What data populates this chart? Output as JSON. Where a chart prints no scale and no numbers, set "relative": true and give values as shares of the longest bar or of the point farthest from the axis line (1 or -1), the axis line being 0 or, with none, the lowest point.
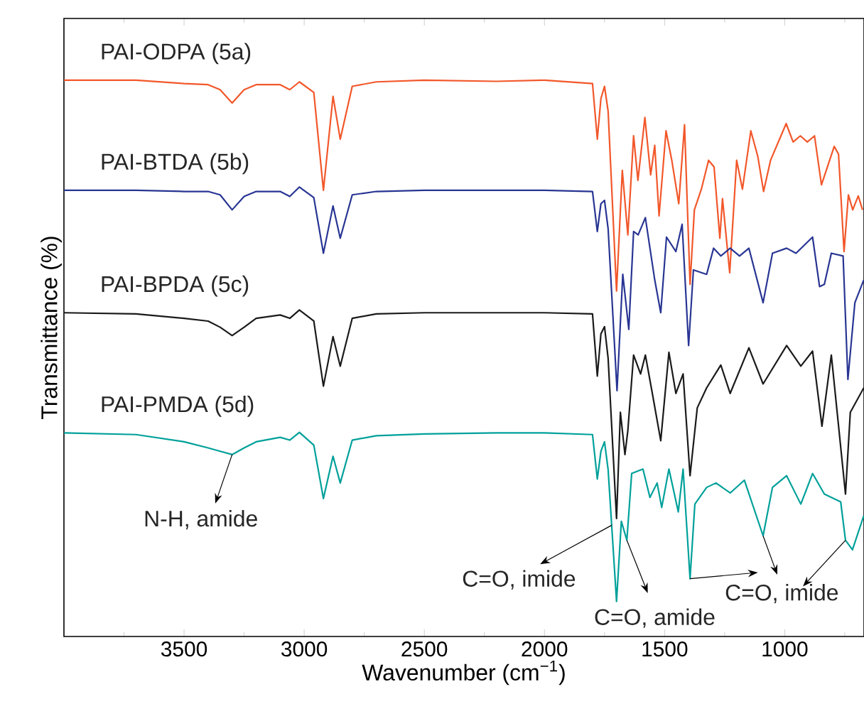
{
  "chart_data": {
    "type": "line",
    "relative": true,
    "xlabel": "Wavenumber (cm$^{−1}$)",
    "ylabel": "Transmittance (%)",
    "xlim": [
      4000,
      670
    ],
    "xticks": [
      3500,
      3000,
      2500,
      2000,
      1500,
      1000
    ],
    "series": [
      {
        "name": "PAI-ODPA (5a)",
        "color": "#f2572a",
        "x": [
          4000,
          3700,
          3500,
          3400,
          3350,
          3300,
          3250,
          3200,
          3100,
          3060,
          3020,
          2960,
          2920,
          2880,
          2850,
          2800,
          2700,
          2500,
          2200,
          2000,
          1800,
          1780,
          1765,
          1750,
          1735,
          1700,
          1676,
          1653,
          1629,
          1611,
          1582,
          1558,
          1541,
          1523,
          1494,
          1470,
          1441,
          1417,
          1394,
          1376,
          1347,
          1317,
          1294,
          1270,
          1259,
          1229,
          1200,
          1176,
          1141,
          1112,
          1088,
          1059,
          994,
          965,
          935,
          906,
          876,
          847,
          794,
          776,
          753,
          735,
          717,
          694,
          676
        ],
        "values": [
          1,
          1,
          0.994,
          0.992,
          0.983,
          0.959,
          0.983,
          0.992,
          0.992,
          0.983,
          0.997,
          0.978,
          0.802,
          0.971,
          0.894,
          0.989,
          0.997,
          1,
          0.998,
          1,
          0.994,
          0.894,
          0.967,
          0.989,
          0.944,
          0.621,
          0.838,
          0.722,
          0.9,
          0.82,
          0.933,
          0.83,
          0.883,
          0.756,
          0.909,
          0.856,
          0.778,
          0.92,
          0.633,
          0.767,
          0.804,
          0.856,
          0.844,
          0.716,
          0.787,
          0.654,
          0.856,
          0.804,
          0.909,
          0.863,
          0.8,
          0.856,
          0.922,
          0.889,
          0.9,
          0.889,
          0.9,
          0.812,
          0.881,
          0.867,
          0.692,
          0.794,
          0.767,
          0.792,
          0.767
        ]
      },
      {
        "name": "PAI-BTDA (5b)",
        "color": "#283593",
        "x": [
          4000,
          3700,
          3500,
          3400,
          3350,
          3300,
          3250,
          3200,
          3100,
          3060,
          3020,
          2960,
          2920,
          2880,
          2850,
          2800,
          2700,
          2500,
          2200,
          2000,
          1800,
          1780,
          1765,
          1750,
          1735,
          1698,
          1674,
          1649,
          1629,
          1610,
          1580,
          1541,
          1516,
          1492,
          1453,
          1427,
          1400,
          1380,
          1325,
          1296,
          1266,
          1227,
          1188,
          1149,
          1090,
          1051,
          992,
          953,
          884,
          855,
          835,
          806,
          757,
          737,
          708,
          671
        ],
        "values": [
          0.802,
          0.802,
          0.8,
          0.8,
          0.794,
          0.767,
          0.791,
          0.8,
          0.8,
          0.791,
          0.808,
          0.789,
          0.689,
          0.774,
          0.716,
          0.794,
          0.8,
          0.802,
          0.802,
          0.802,
          0.8,
          0.728,
          0.778,
          0.784,
          0.733,
          0.442,
          0.651,
          0.552,
          0.728,
          0.722,
          0.753,
          0.641,
          0.582,
          0.718,
          0.692,
          0.741,
          0.523,
          0.659,
          0.651,
          0.698,
          0.684,
          0.698,
          0.684,
          0.698,
          0.6,
          0.689,
          0.698,
          0.689,
          0.718,
          0.629,
          0.633,
          0.689,
          0.684,
          0.462,
          0.6,
          0.641
        ]
      },
      {
        "name": "PAI-BPDA (5c)",
        "color": "#1a1a1a",
        "x": [
          4000,
          3700,
          3500,
          3400,
          3350,
          3300,
          3250,
          3200,
          3100,
          3060,
          3020,
          2960,
          2920,
          2880,
          2850,
          2800,
          2700,
          2500,
          2200,
          2000,
          1800,
          1780,
          1765,
          1750,
          1735,
          1700,
          1684,
          1665,
          1653,
          1629,
          1600,
          1580,
          1551,
          1516,
          1482,
          1453,
          1423,
          1394,
          1364,
          1325,
          1266,
          1227,
          1149,
          1090,
          992,
          933,
          884,
          845,
          806,
          747,
          727,
          671
        ],
        "values": [
          0.582,
          0.58,
          0.572,
          0.567,
          0.556,
          0.541,
          0.556,
          0.572,
          0.578,
          0.572,
          0.587,
          0.567,
          0.45,
          0.539,
          0.486,
          0.572,
          0.58,
          0.582,
          0.582,
          0.582,
          0.58,
          0.468,
          0.544,
          0.557,
          0.5,
          0.212,
          0.403,
          0.327,
          0.37,
          0.506,
          0.472,
          0.506,
          0.437,
          0.352,
          0.511,
          0.437,
          0.472,
          0.289,
          0.411,
          0.447,
          0.488,
          0.437,
          0.519,
          0.454,
          0.523,
          0.486,
          0.513,
          0.378,
          0.506,
          0.256,
          0.403,
          0.447
        ]
      },
      {
        "name": "PAI-PMDA (5d)",
        "color": "#00a09a",
        "x": [
          4000,
          3700,
          3500,
          3400,
          3350,
          3300,
          3250,
          3200,
          3100,
          3060,
          3020,
          2960,
          2920,
          2880,
          2850,
          2800,
          2700,
          2500,
          2200,
          2000,
          1800,
          1780,
          1765,
          1750,
          1735,
          1700,
          1680,
          1657,
          1637,
          1590,
          1561,
          1531,
          1512,
          1482,
          1443,
          1423,
          1394,
          1374,
          1325,
          1286,
          1227,
          1168,
          1090,
          1051,
          992,
          933,
          884,
          835,
          767,
          747,
          718,
          671
        ],
        "values": [
          0.366,
          0.363,
          0.35,
          0.339,
          0.333,
          0.327,
          0.339,
          0.35,
          0.358,
          0.353,
          0.367,
          0.344,
          0.248,
          0.324,
          0.276,
          0.353,
          0.361,
          0.364,
          0.366,
          0.366,
          0.363,
          0.283,
          0.333,
          0.35,
          0.3,
          0.063,
          0.207,
          0.173,
          0.293,
          0.301,
          0.25,
          0.276,
          0.232,
          0.301,
          0.224,
          0.301,
          0.104,
          0.238,
          0.268,
          0.276,
          0.258,
          0.281,
          0.181,
          0.268,
          0.289,
          0.238,
          0.293,
          0.256,
          0.242,
          0.173,
          0.156,
          0.217
        ]
      }
    ],
    "annotations": [
      {
        "text": "N-H, amide",
        "x": 3300,
        "y": 0.327
      },
      {
        "text": "C=O, imide",
        "x": 1720,
        "y": 0.2
      },
      {
        "text": "C=O, amide",
        "x": 1657,
        "y": 0.173
      },
      {
        "text": "C=O, imide",
        "x": 1394,
        "y": 0.104
      }
    ]
  }
}
